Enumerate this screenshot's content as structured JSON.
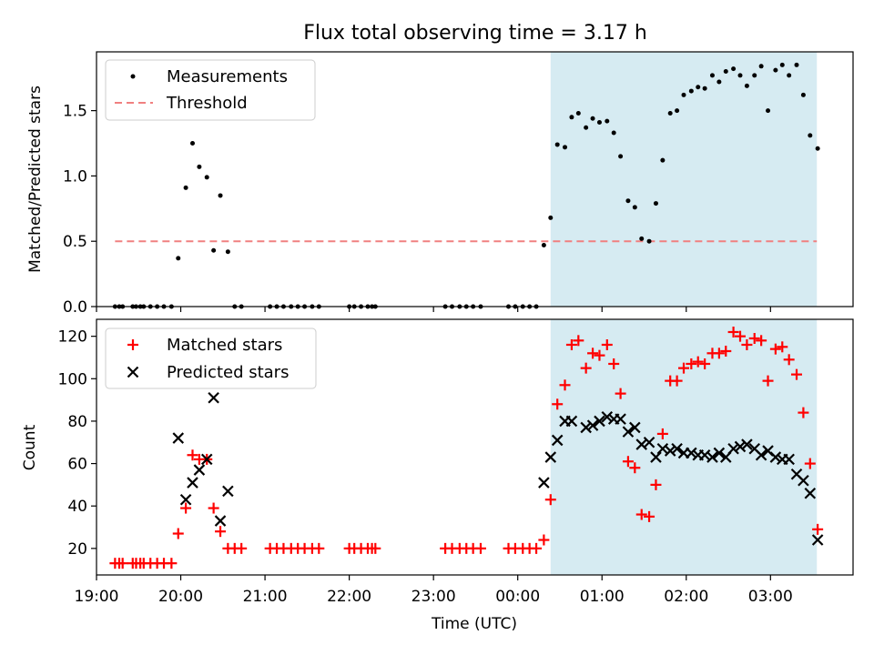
{
  "title": "Flux total observing time = 3.17 h",
  "colors": {
    "measurement": "#000000",
    "threshold": "#f08080",
    "matched": "#ff0000",
    "predicted": "#000000",
    "shade": "#add8e6"
  },
  "chart_data": [
    {
      "type": "scatter",
      "panel": "top",
      "ylabel": "Matched/Predicted stars",
      "xlabel": "",
      "xlim": [
        19.0,
        27.98
      ],
      "ylim": [
        0,
        1.95
      ],
      "yticks": [
        0.0,
        0.5,
        1.0,
        1.5
      ],
      "ytick_labels": [
        "0.0",
        "0.5",
        "1.0",
        "1.5"
      ],
      "shaded_span": [
        24.39,
        27.55
      ],
      "legend": {
        "position": "upper-left",
        "entries": [
          "Measurements",
          "Threshold"
        ]
      },
      "threshold": {
        "name": "Threshold",
        "y": 0.5,
        "x_range": [
          19.22,
          27.55
        ]
      },
      "series": [
        {
          "name": "Measurements",
          "marker": "dot",
          "points": [
            [
              19.22,
              0
            ],
            [
              19.27,
              0
            ],
            [
              19.31,
              0
            ],
            [
              19.43,
              0
            ],
            [
              19.47,
              0
            ],
            [
              19.52,
              0
            ],
            [
              19.56,
              0
            ],
            [
              19.64,
              0
            ],
            [
              19.72,
              0
            ],
            [
              19.8,
              0
            ],
            [
              19.89,
              0
            ],
            [
              19.97,
              0.37
            ],
            [
              20.06,
              0.91
            ],
            [
              20.14,
              1.25
            ],
            [
              20.22,
              1.07
            ],
            [
              20.31,
              0.99
            ],
            [
              20.39,
              0.43
            ],
            [
              20.47,
              0.85
            ],
            [
              20.56,
              0.42
            ],
            [
              20.64,
              0
            ],
            [
              20.72,
              0
            ],
            [
              21.06,
              0
            ],
            [
              21.14,
              0
            ],
            [
              21.22,
              0
            ],
            [
              21.31,
              0
            ],
            [
              21.39,
              0
            ],
            [
              21.47,
              0
            ],
            [
              21.56,
              0
            ],
            [
              21.64,
              0
            ],
            [
              22.0,
              0
            ],
            [
              22.06,
              0
            ],
            [
              22.14,
              0
            ],
            [
              22.22,
              0
            ],
            [
              22.27,
              0
            ],
            [
              22.31,
              0
            ],
            [
              23.14,
              0
            ],
            [
              23.22,
              0
            ],
            [
              23.31,
              0
            ],
            [
              23.39,
              0
            ],
            [
              23.47,
              0
            ],
            [
              23.56,
              0
            ],
            [
              23.89,
              0
            ],
            [
              23.97,
              0
            ],
            [
              24.06,
              0
            ],
            [
              24.14,
              0
            ],
            [
              24.22,
              0
            ],
            [
              24.31,
              0.47
            ],
            [
              24.39,
              0.68
            ],
            [
              24.47,
              1.24
            ],
            [
              24.56,
              1.22
            ],
            [
              24.64,
              1.45
            ],
            [
              24.72,
              1.48
            ],
            [
              24.81,
              1.37
            ],
            [
              24.89,
              1.44
            ],
            [
              24.97,
              1.41
            ],
            [
              25.06,
              1.42
            ],
            [
              25.14,
              1.33
            ],
            [
              25.22,
              1.15
            ],
            [
              25.31,
              0.81
            ],
            [
              25.39,
              0.76
            ],
            [
              25.47,
              0.52
            ],
            [
              25.56,
              0.5
            ],
            [
              25.64,
              0.79
            ],
            [
              25.72,
              1.12
            ],
            [
              25.81,
              1.48
            ],
            [
              25.89,
              1.5
            ],
            [
              25.97,
              1.62
            ],
            [
              26.06,
              1.65
            ],
            [
              26.14,
              1.68
            ],
            [
              26.22,
              1.67
            ],
            [
              26.31,
              1.77
            ],
            [
              26.39,
              1.72
            ],
            [
              26.47,
              1.8
            ],
            [
              26.56,
              1.82
            ],
            [
              26.64,
              1.77
            ],
            [
              26.72,
              1.69
            ],
            [
              26.81,
              1.77
            ],
            [
              26.89,
              1.84
            ],
            [
              26.97,
              1.5
            ],
            [
              27.06,
              1.81
            ],
            [
              27.14,
              1.85
            ],
            [
              27.22,
              1.77
            ],
            [
              27.31,
              1.85
            ],
            [
              27.39,
              1.62
            ],
            [
              27.47,
              1.31
            ],
            [
              27.56,
              1.21
            ]
          ]
        }
      ]
    },
    {
      "type": "scatter",
      "panel": "bottom",
      "ylabel": "Count",
      "xlabel": "Time (UTC)",
      "xlim": [
        19.0,
        27.98
      ],
      "ylim": [
        7.5,
        128
      ],
      "yticks": [
        20,
        40,
        60,
        80,
        100,
        120
      ],
      "ytick_labels": [
        "20",
        "40",
        "60",
        "80",
        "100",
        "120"
      ],
      "xticks": [
        19,
        20,
        21,
        22,
        23,
        24,
        25,
        26,
        27
      ],
      "xtick_labels": [
        "19:00",
        "20:00",
        "21:00",
        "22:00",
        "23:00",
        "00:00",
        "01:00",
        "02:00",
        "03:00"
      ],
      "shaded_span": [
        24.39,
        27.55
      ],
      "legend": {
        "position": "upper-left",
        "entries": [
          "Matched stars",
          "Predicted stars"
        ]
      },
      "series": [
        {
          "name": "Matched stars",
          "marker": "plus",
          "points": [
            [
              19.22,
              13
            ],
            [
              19.27,
              13
            ],
            [
              19.31,
              13
            ],
            [
              19.43,
              13
            ],
            [
              19.47,
              13
            ],
            [
              19.52,
              13
            ],
            [
              19.56,
              13
            ],
            [
              19.64,
              13
            ],
            [
              19.72,
              13
            ],
            [
              19.8,
              13
            ],
            [
              19.89,
              13
            ],
            [
              19.97,
              27
            ],
            [
              20.06,
              39
            ],
            [
              20.14,
              64
            ],
            [
              20.22,
              62
            ],
            [
              20.31,
              62
            ],
            [
              20.39,
              39
            ],
            [
              20.47,
              28
            ],
            [
              20.56,
              20
            ],
            [
              20.64,
              20
            ],
            [
              20.72,
              20
            ],
            [
              21.06,
              20
            ],
            [
              21.14,
              20
            ],
            [
              21.22,
              20
            ],
            [
              21.31,
              20
            ],
            [
              21.39,
              20
            ],
            [
              21.47,
              20
            ],
            [
              21.56,
              20
            ],
            [
              21.64,
              20
            ],
            [
              22.0,
              20
            ],
            [
              22.06,
              20
            ],
            [
              22.14,
              20
            ],
            [
              22.22,
              20
            ],
            [
              22.27,
              20
            ],
            [
              22.31,
              20
            ],
            [
              23.14,
              20
            ],
            [
              23.22,
              20
            ],
            [
              23.31,
              20
            ],
            [
              23.39,
              20
            ],
            [
              23.47,
              20
            ],
            [
              23.56,
              20
            ],
            [
              23.89,
              20
            ],
            [
              23.97,
              20
            ],
            [
              24.06,
              20
            ],
            [
              24.14,
              20
            ],
            [
              24.22,
              20
            ],
            [
              24.31,
              24
            ],
            [
              24.39,
              43
            ],
            [
              24.47,
              88
            ],
            [
              24.56,
              97
            ],
            [
              24.64,
              116
            ],
            [
              24.72,
              118
            ],
            [
              24.81,
              105
            ],
            [
              24.89,
              112
            ],
            [
              24.97,
              111
            ],
            [
              25.06,
              116
            ],
            [
              25.14,
              107
            ],
            [
              25.22,
              93
            ],
            [
              25.31,
              61
            ],
            [
              25.39,
              58
            ],
            [
              25.47,
              36
            ],
            [
              25.56,
              35
            ],
            [
              25.64,
              50
            ],
            [
              25.72,
              74
            ],
            [
              25.81,
              99
            ],
            [
              25.89,
              99
            ],
            [
              25.97,
              105
            ],
            [
              26.06,
              107
            ],
            [
              26.14,
              108
            ],
            [
              26.22,
              107
            ],
            [
              26.31,
              112
            ],
            [
              26.39,
              112
            ],
            [
              26.47,
              113
            ],
            [
              26.56,
              122
            ],
            [
              26.64,
              120
            ],
            [
              26.72,
              116
            ],
            [
              26.81,
              119
            ],
            [
              26.89,
              118
            ],
            [
              26.97,
              99
            ],
            [
              27.06,
              114
            ],
            [
              27.14,
              115
            ],
            [
              27.22,
              109
            ],
            [
              27.31,
              102
            ],
            [
              27.39,
              84
            ],
            [
              27.47,
              60
            ],
            [
              27.56,
              29
            ]
          ]
        },
        {
          "name": "Predicted stars",
          "marker": "x",
          "points": [
            [
              19.97,
              72
            ],
            [
              20.06,
              43
            ],
            [
              20.14,
              51
            ],
            [
              20.22,
              57
            ],
            [
              20.31,
              62
            ],
            [
              20.39,
              91
            ],
            [
              20.47,
              33
            ],
            [
              20.56,
              47
            ],
            [
              24.31,
              51
            ],
            [
              24.39,
              63
            ],
            [
              24.47,
              71
            ],
            [
              24.56,
              80
            ],
            [
              24.64,
              80
            ],
            [
              24.81,
              77
            ],
            [
              24.89,
              78
            ],
            [
              24.97,
              80
            ],
            [
              25.06,
              82
            ],
            [
              25.14,
              81
            ],
            [
              25.22,
              81
            ],
            [
              25.31,
              75
            ],
            [
              25.39,
              77
            ],
            [
              25.47,
              69
            ],
            [
              25.56,
              70
            ],
            [
              25.64,
              63
            ],
            [
              25.72,
              67
            ],
            [
              25.81,
              66
            ],
            [
              25.89,
              67
            ],
            [
              25.97,
              65
            ],
            [
              26.06,
              65
            ],
            [
              26.14,
              64
            ],
            [
              26.22,
              64
            ],
            [
              26.31,
              63
            ],
            [
              26.39,
              65
            ],
            [
              26.47,
              63
            ],
            [
              26.56,
              67
            ],
            [
              26.64,
              68
            ],
            [
              26.72,
              69
            ],
            [
              26.81,
              67
            ],
            [
              26.89,
              64
            ],
            [
              26.97,
              66
            ],
            [
              27.06,
              63
            ],
            [
              27.14,
              62
            ],
            [
              27.22,
              62
            ],
            [
              27.31,
              55
            ],
            [
              27.39,
              52
            ],
            [
              27.47,
              46
            ],
            [
              27.56,
              24
            ]
          ]
        }
      ]
    }
  ]
}
